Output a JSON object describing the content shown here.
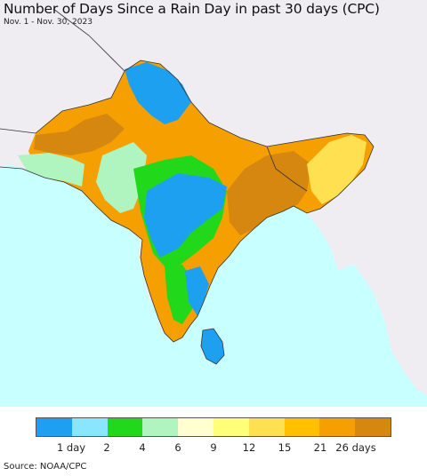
{
  "title": "Number of Days Since a Rain Day in past 30 days (CPC)",
  "subtitle": "Nov. 1 - Nov. 30, 2023",
  "source": "Source: NOAA/CPC",
  "legend": {
    "colors": [
      "#1ea0f0",
      "#8ae6ff",
      "#22d81a",
      "#b0f5c0",
      "#ffffd0",
      "#ffff78",
      "#ffe050",
      "#ffc000",
      "#f5a000",
      "#d58710"
    ],
    "labels": [
      "1 day",
      "2",
      "4",
      "6",
      "9",
      "12",
      "15",
      "21",
      "26 days"
    ]
  },
  "map_colors": {
    "ocean": "#c8ffff",
    "foreign_land": "#efecf2",
    "border": "#333333"
  }
}
